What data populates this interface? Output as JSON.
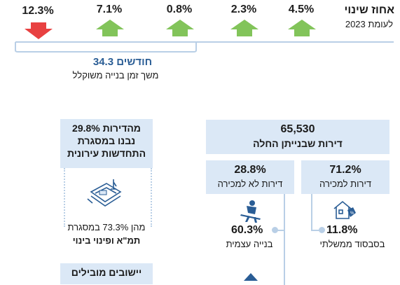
{
  "header": {
    "title": "אחוז שינוי",
    "subtitle": "לעומת 2023"
  },
  "changes": [
    {
      "value": "12.3%",
      "direction": "down",
      "color": "#e84141"
    },
    {
      "value": "7.1%",
      "direction": "up",
      "color": "#82c45a"
    },
    {
      "value": "0.8%",
      "direction": "up",
      "color": "#82c45a"
    },
    {
      "value": "2.3%",
      "direction": "up",
      "color": "#82c45a"
    },
    {
      "value": "4.5%",
      "direction": "up",
      "color": "#82c45a"
    }
  ],
  "duration": {
    "value": "34.3 חודשים",
    "label": "משך זמן בנייה משוקלל"
  },
  "starts": {
    "count": "65,530",
    "label": "דירות שבנייתן החלה"
  },
  "for_sale": {
    "value": "71.2%",
    "label": "דירות למכירה"
  },
  "not_for_sale": {
    "value": "28.8%",
    "label": "דירות לא למכירה"
  },
  "subsidized": {
    "value": "11.8%",
    "label": "בסבסוד ממשלתי"
  },
  "self_build": {
    "value": "60.3%",
    "label": "בנייה עצמית"
  },
  "urban_renewal": {
    "line1": "29.8% מהדירות",
    "line2": "נבנו במסגרת",
    "line3": "התחדשות עירונית",
    "sub_line1": "מהן 73.3% במסגרת",
    "sub_line2": "תמ\"א ופינוי בינוי"
  },
  "leading": {
    "title": "יישובים מובילים"
  },
  "colors": {
    "accent_bg": "#dbe8f6",
    "line": "#b9cfe6",
    "blue": "#2a5d95",
    "up": "#82c45a",
    "down": "#e84141"
  },
  "icons": [
    "down-arrow-icon",
    "up-arrow-icon",
    "house-percent-icon",
    "self-build-worker-icon",
    "blueprint-icon",
    "building-icon"
  ]
}
